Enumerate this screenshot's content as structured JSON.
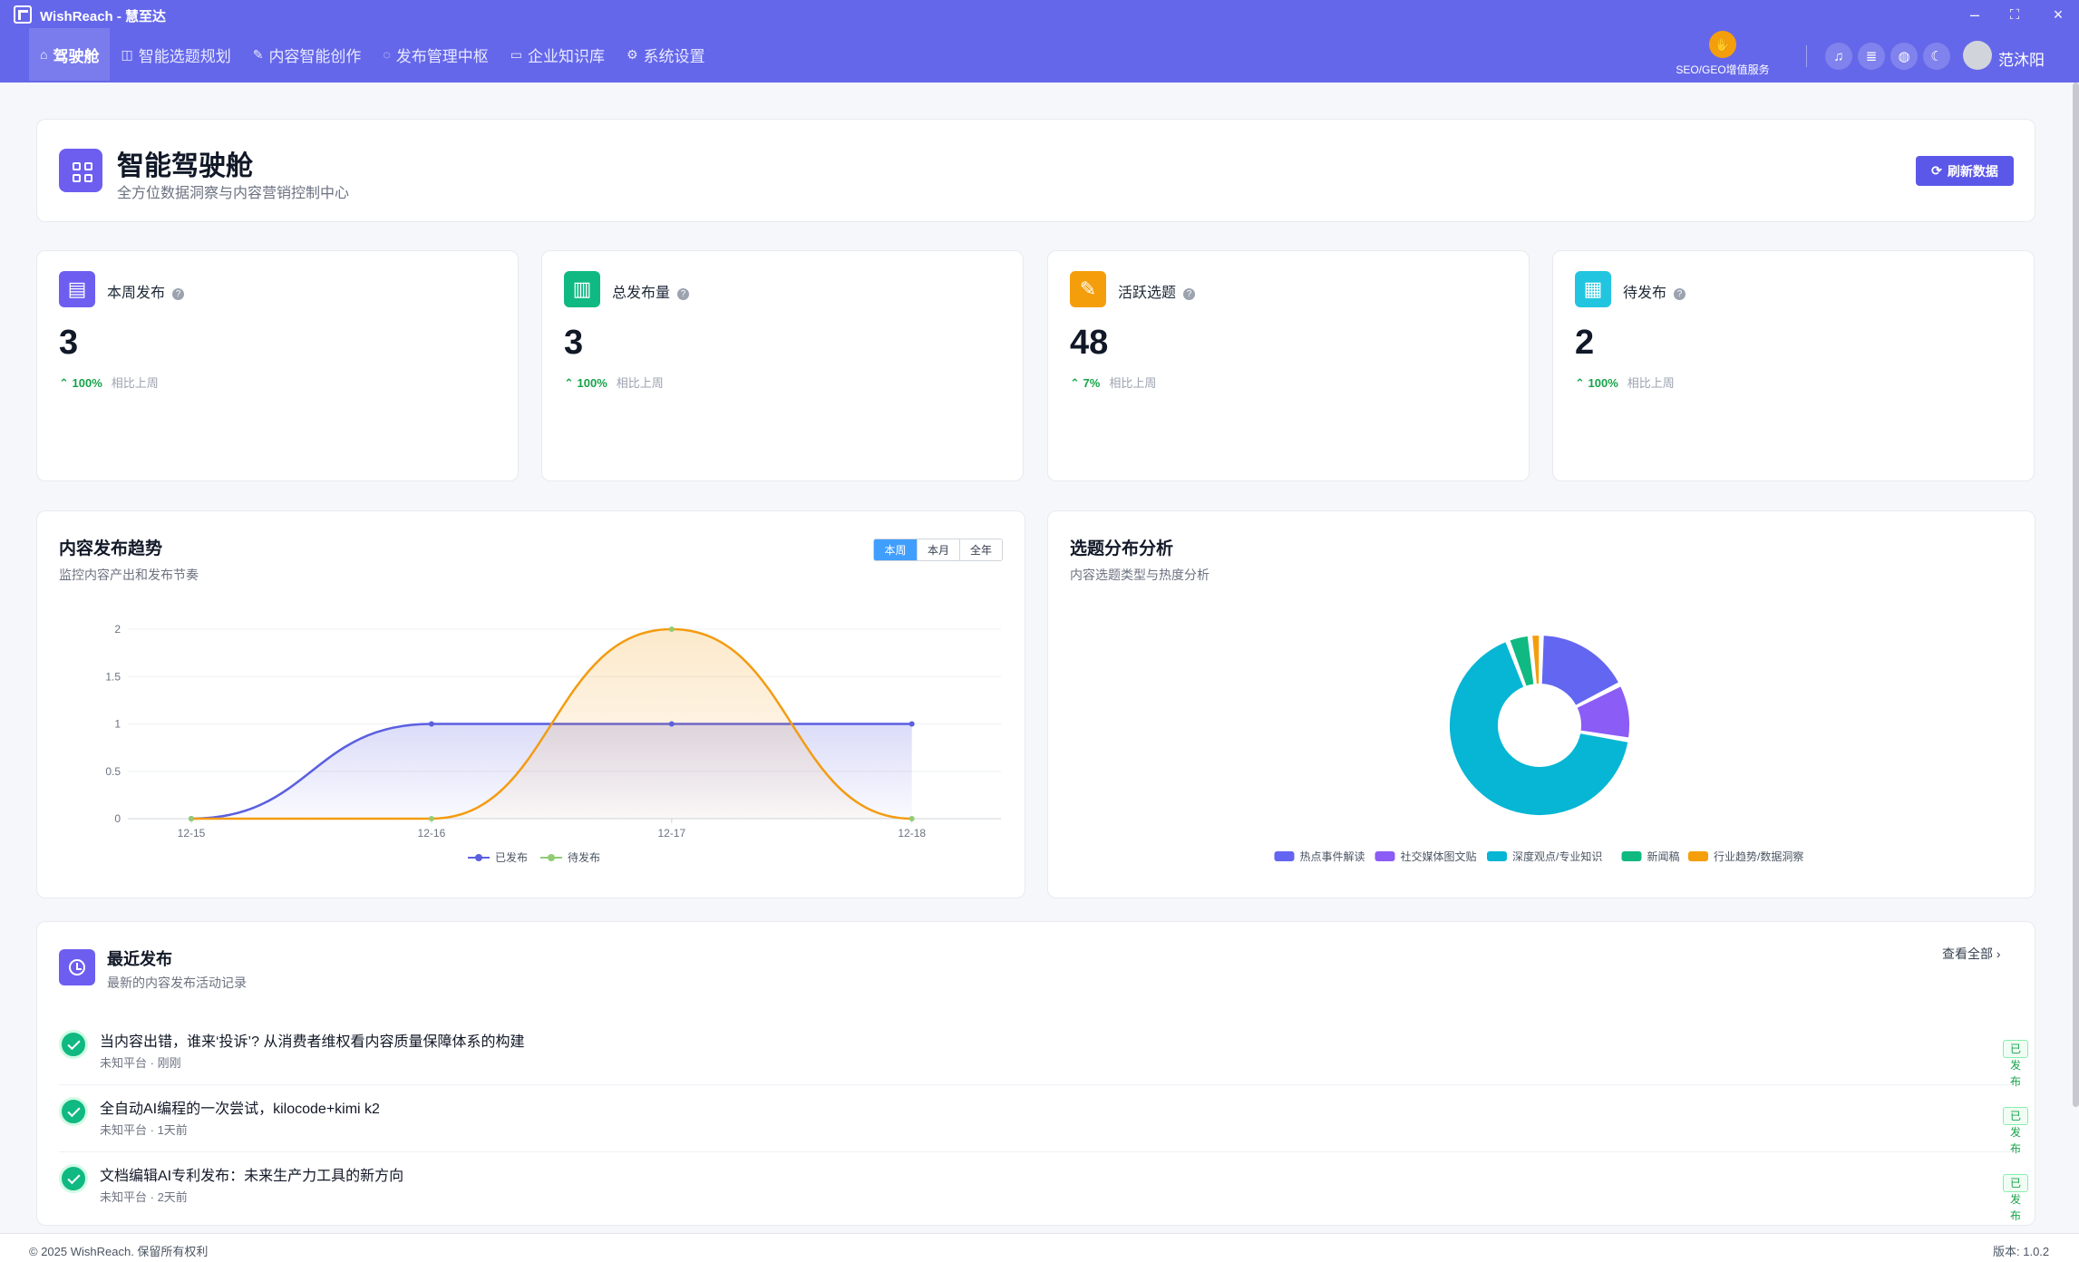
{
  "app": {
    "title": "WishReach - 慧至达"
  },
  "nav": [
    {
      "label": "驾驶舱",
      "icon": "home-icon"
    },
    {
      "label": "智能选题规划",
      "icon": "target-icon"
    },
    {
      "label": "内容智能创作",
      "icon": "edit-icon"
    },
    {
      "label": "发布管理中枢",
      "icon": "chat-icon"
    },
    {
      "label": "企业知识库",
      "icon": "box-icon"
    },
    {
      "label": "系统设置",
      "icon": "gear-icon"
    }
  ],
  "header_right": {
    "seo_label": "SEO/GEO增值服务",
    "user_name": "范沐阳"
  },
  "header": {
    "title": "智能驾驶舱",
    "subtitle": "全方位数据洞察与内容营销控制中心",
    "refresh_label": "刷新数据"
  },
  "stats": [
    {
      "label": "本周发布",
      "value": "3",
      "pct": "100%",
      "compare": "相比上周",
      "color": "#6d5ef0",
      "icon": "document-icon"
    },
    {
      "label": "总发布量",
      "value": "3",
      "pct": "100%",
      "compare": "相比上周",
      "color": "#10b981",
      "icon": "presentation-icon"
    },
    {
      "label": "活跃选题",
      "value": "48",
      "pct": "7%",
      "compare": "相比上周",
      "color": "#f59e0b",
      "icon": "pencil-square-icon"
    },
    {
      "label": "待发布",
      "value": "2",
      "pct": "100%",
      "compare": "相比上周",
      "color": "#22c5e0",
      "icon": "calendar-icon"
    }
  ],
  "trend": {
    "title": "内容发布趋势",
    "subtitle": "监控内容产出和发布节奏",
    "tabs": [
      "本周",
      "本月",
      "全年"
    ]
  },
  "distribution": {
    "title": "选题分布分析",
    "subtitle": "内容选题类型与热度分析"
  },
  "chart_data": [
    {
      "type": "area",
      "categories": [
        "12-15",
        "12-16",
        "12-17",
        "12-18"
      ],
      "y_ticks": [
        "0",
        "0.5",
        "1",
        "1.5",
        "2"
      ],
      "ylim": [
        0,
        2
      ],
      "series": [
        {
          "name": "已发布",
          "values": [
            0,
            1,
            1,
            1
          ],
          "color": "#5b5fe0"
        },
        {
          "name": "待发布",
          "values": [
            0,
            0,
            2,
            0
          ],
          "color": "#f39c12"
        }
      ],
      "legend": "bottom"
    },
    {
      "type": "pie",
      "donut": true,
      "labels": [
        "热点事件解读",
        "社交媒体图文贴",
        "深度观点/专业知识",
        "新闻稿",
        "行业趋势/数据洞察"
      ],
      "values": [
        17,
        10,
        66,
        4,
        2
      ],
      "colors": [
        "#6366f1",
        "#8b5cf6",
        "#06b6d4",
        "#10b981",
        "#f59e0b"
      ],
      "legend": "bottom"
    }
  ],
  "recent": {
    "title": "最近发布",
    "subtitle": "最新的内容发布活动记录",
    "view_all": "查看全部",
    "items": [
      {
        "title": "当内容出错，谁来‘投诉’? 从消费者维权看内容质量保障体系的构建",
        "platform": "未知平台",
        "time": "刚刚",
        "status": "已发布"
      },
      {
        "title": "全自动AI编程的一次尝试，kilocode+kimi k2",
        "platform": "未知平台",
        "time": "1天前",
        "status": "已发布"
      },
      {
        "title": "文档编辑AI专利发布：未来生产力工具的新方向",
        "platform": "未知平台",
        "time": "2天前",
        "status": "已发布"
      }
    ]
  },
  "footer": {
    "copyright": "© 2025 WishReach. 保留所有权利",
    "version": "版本: 1.0.2"
  }
}
